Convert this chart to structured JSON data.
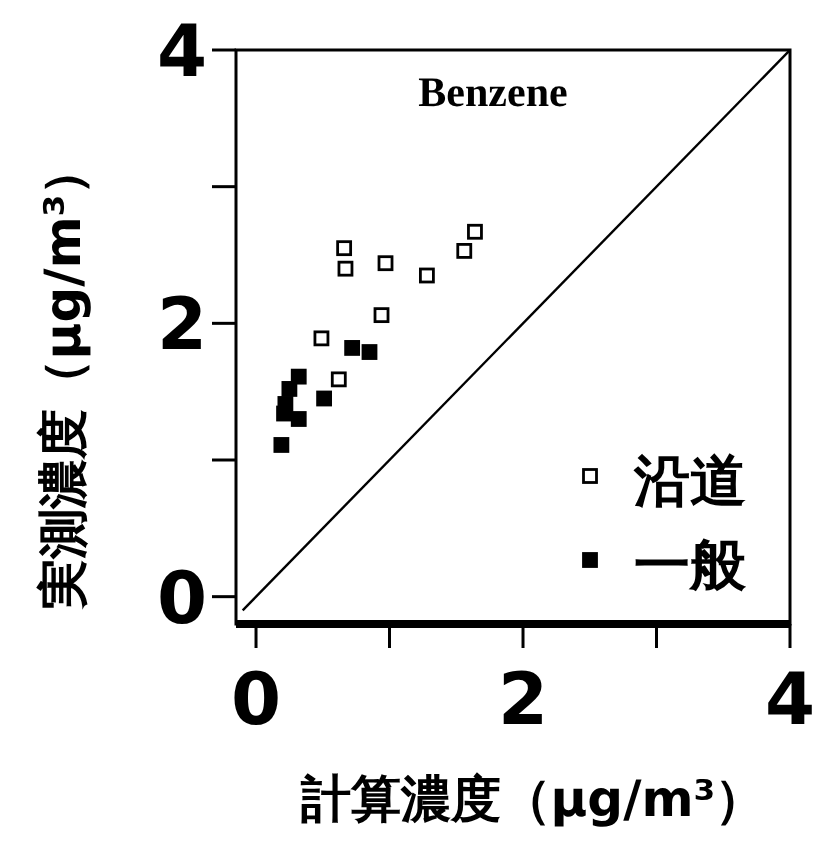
{
  "chart_data": {
    "type": "scatter",
    "title": "Benzene",
    "xlabel": "計算濃度（μg/m³）",
    "ylabel": "実測濃度（μg/m³）",
    "xlim": [
      -0.15,
      4
    ],
    "ylim": [
      -0.2,
      4
    ],
    "xticks": [
      0,
      {
        "value": 1,
        "label": null
      },
      2,
      {
        "value": 3,
        "label": null
      },
      4
    ],
    "yticks": [
      0,
      {
        "value": 1,
        "label": null
      },
      2,
      {
        "value": 3,
        "label": null
      },
      4
    ],
    "grid": false,
    "legend": "bottom right",
    "series": [
      {
        "name": "沿道",
        "marker": "square",
        "color": "#ffffff",
        "x": [
          0.66,
          0.67,
          0.97,
          1.28,
          1.56,
          1.64,
          0.94,
          0.49,
          0.62
        ],
        "values": [
          2.55,
          2.4,
          2.44,
          2.35,
          2.53,
          2.67,
          2.06,
          1.89,
          1.59
        ]
      },
      {
        "name": "一般",
        "marker": "square",
        "color": "#000000",
        "x": [
          0.19,
          0.21,
          0.22,
          0.25,
          0.32,
          0.32,
          0.51,
          0.72,
          0.85
        ],
        "values": [
          1.11,
          1.34,
          1.41,
          1.52,
          1.61,
          1.3,
          1.45,
          1.82,
          1.79
        ]
      },
      {
        "type": "line",
        "marker": "none",
        "line_style": "solid",
        "color": "#000000",
        "x": [
          -0.1,
          4
        ],
        "values": [
          -0.1,
          4
        ]
      }
    ]
  }
}
